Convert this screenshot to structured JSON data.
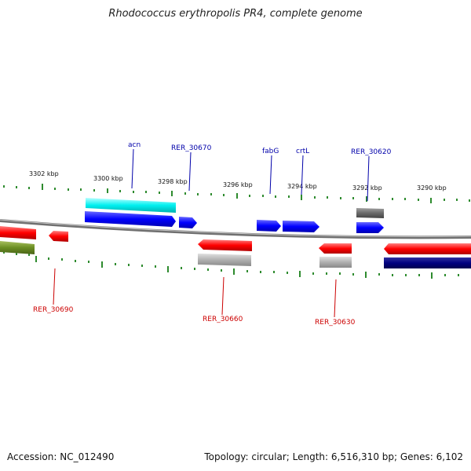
{
  "title": "Rhodococcus erythropolis PR4, complete genome",
  "footer": {
    "accession": "Accession: NC_012490",
    "summary": "Topology: circular; Length: 6,516,310 bp; Genes: 6,102"
  },
  "scale": {
    "ticks": [
      "3302 kbp",
      "3300 kbp",
      "3298 kbp",
      "3296 kbp",
      "3294 kbp",
      "3292 kbp",
      "3290 kbp"
    ]
  },
  "labels": {
    "top": [
      "acn",
      "RER_30670",
      "fabG",
      "crtL",
      "RER_30620"
    ],
    "bottom": [
      "RER_30690",
      "RER_30660",
      "RER_30630"
    ]
  },
  "colors": {
    "forward_gene": "#0000ff",
    "reverse_gene": "#ff0000",
    "cyan_gene": "#00e5e5",
    "navy_gene": "#000080",
    "olive_gene": "#6b8e23",
    "gray_gene": "#b0b0b0",
    "dark_gray_gene": "#707070",
    "top_label": "#0000aa",
    "bottom_label": "#cc0000",
    "tick": "#2e8b2e",
    "backbone": "#808080"
  }
}
